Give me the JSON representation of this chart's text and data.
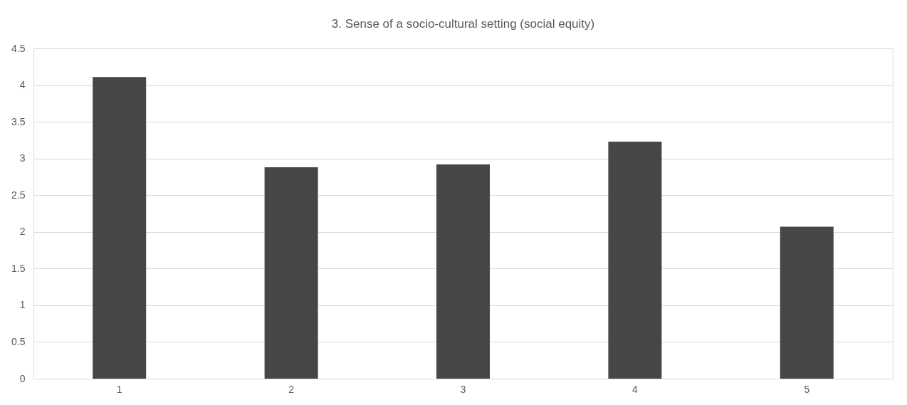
{
  "chart_data": {
    "type": "bar",
    "title": "3. Sense of a socio-cultural setting (social equity)",
    "categories": [
      "1",
      "2",
      "3",
      "4",
      "5"
    ],
    "series": [
      {
        "color": "#464646",
        "values": [
          4.11,
          2.88,
          2.92,
          3.23,
          2.07
        ]
      }
    ],
    "ylim": [
      0,
      4.5
    ],
    "yticks": [
      0,
      0.5,
      1,
      1.5,
      2,
      2.5,
      3,
      3.5,
      4,
      4.5
    ],
    "grid": "y"
  }
}
